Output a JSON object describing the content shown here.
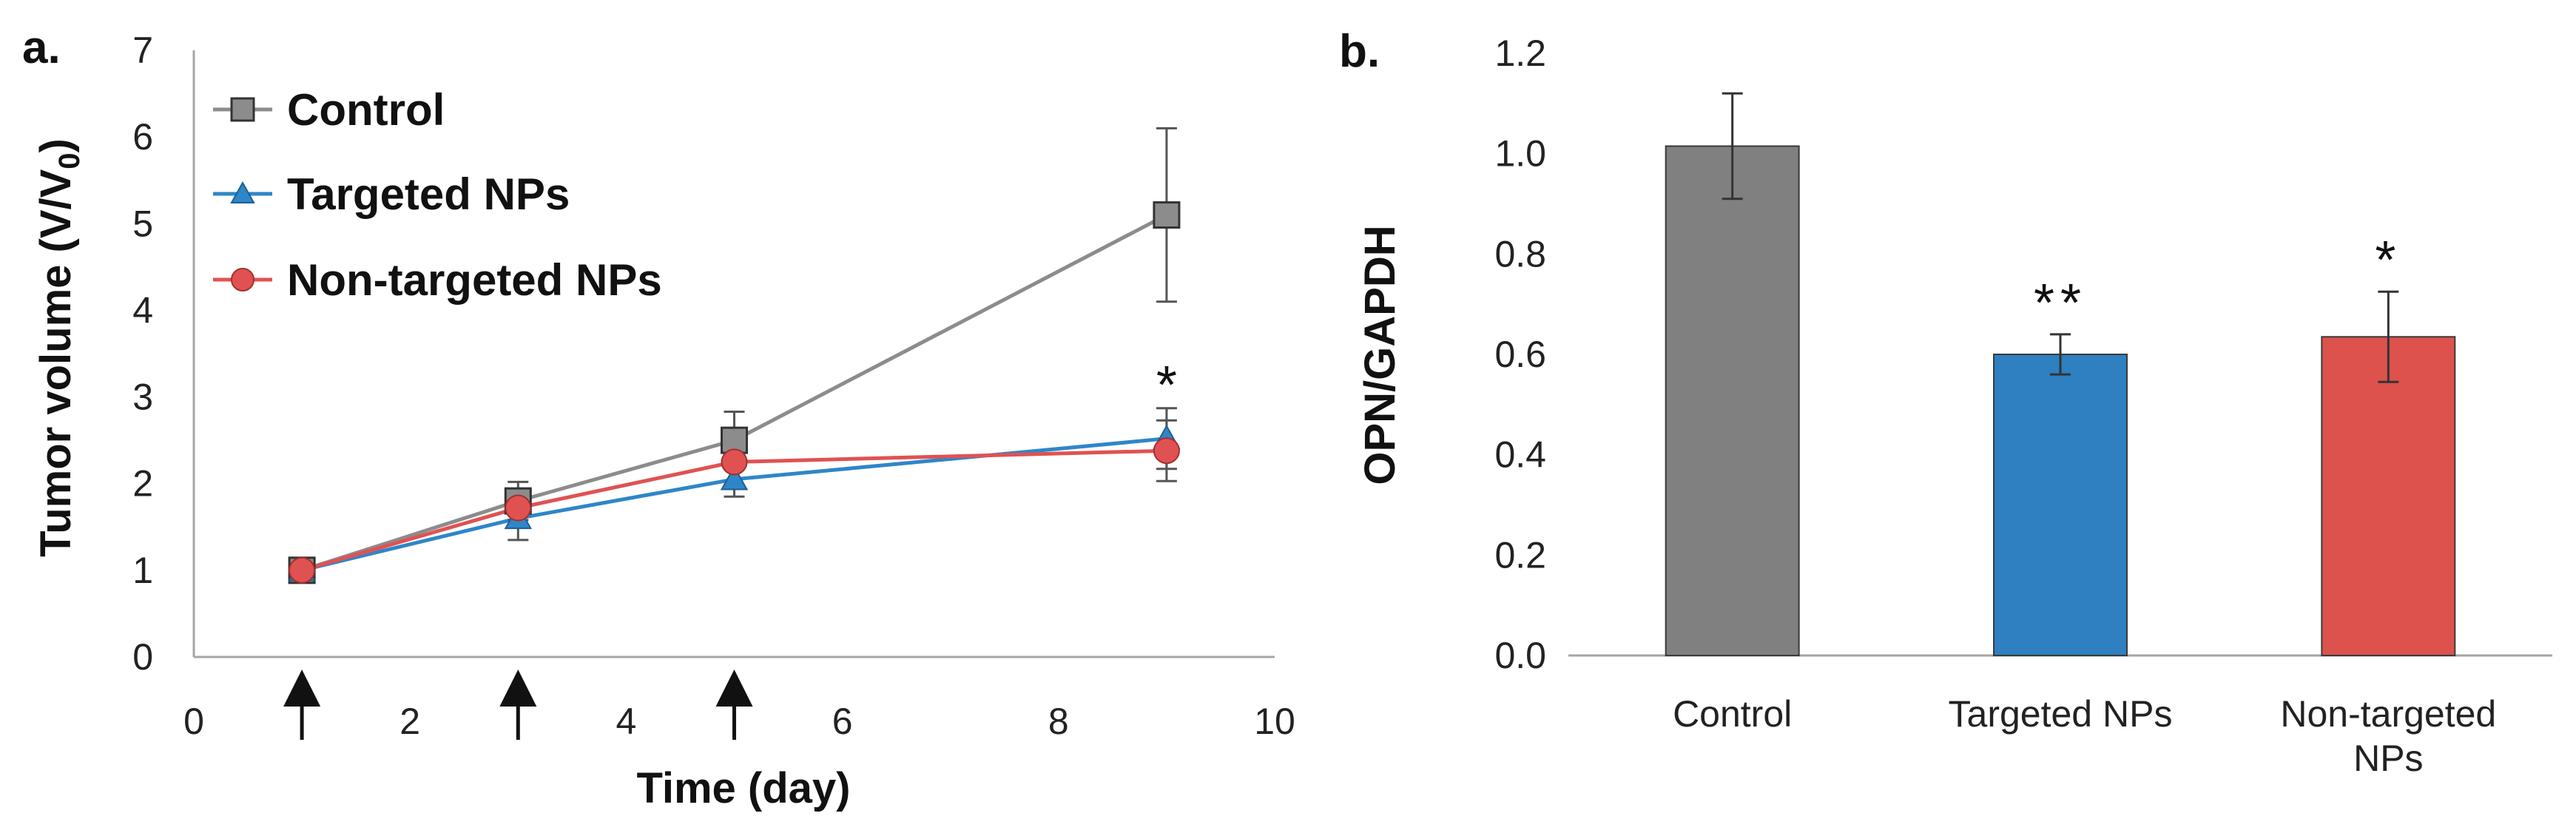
{
  "chart_data": [
    {
      "panel_label": "a.",
      "type": "line",
      "xlabel": "Time (day)",
      "ylabel_main": "Tumor volume (V/V",
      "ylabel_sub": "0",
      "ylabel_close": ")",
      "xlim": [
        0,
        10
      ],
      "ylim": [
        0,
        7
      ],
      "xticks": [
        "0",
        "2",
        "4",
        "6",
        "8",
        "10"
      ],
      "yticks": [
        "0",
        "1",
        "2",
        "3",
        "4",
        "5",
        "6",
        "7"
      ],
      "x": [
        1,
        3,
        5,
        9
      ],
      "series": [
        {
          "name": "Control",
          "color": "#8c8c8c",
          "marker": "square",
          "values": [
            1.0,
            1.8,
            2.5,
            5.1
          ],
          "errors": [
            0.0,
            0.22,
            0.33,
            1.0
          ]
        },
        {
          "name": "Targeted NPs",
          "color": "#2e86c9",
          "marker": "triangle",
          "values": [
            1.0,
            1.6,
            2.05,
            2.52
          ],
          "errors": [
            0.0,
            0.25,
            0.2,
            0.35
          ]
        },
        {
          "name": "Non-targeted NPs",
          "color": "#e05252",
          "marker": "circle",
          "values": [
            1.0,
            1.72,
            2.25,
            2.38
          ],
          "errors": [
            0.0,
            0.2,
            0.3,
            0.35
          ]
        }
      ],
      "dosing_days": [
        1,
        3,
        5
      ],
      "annotations": [
        {
          "text": "*",
          "x": 9,
          "y": 3.1
        }
      ],
      "legend": "top-left"
    },
    {
      "panel_label": "b.",
      "type": "bar",
      "ylabel": "OPN/GAPDH",
      "ylim": [
        0,
        1.2
      ],
      "yticks": [
        "0.0",
        "0.2",
        "0.4",
        "0.6",
        "0.8",
        "1.0",
        "1.2"
      ],
      "categories": [
        [
          "Control"
        ],
        [
          "Targeted NPs"
        ],
        [
          "Non-targeted",
          "NPs"
        ]
      ],
      "values": [
        1.015,
        0.6,
        0.635
      ],
      "errors": [
        0.105,
        0.04,
        0.09
      ],
      "colors": [
        "#808080",
        "#2e80c0",
        "#dd524d"
      ],
      "significance": [
        "",
        "**",
        "*"
      ]
    }
  ]
}
